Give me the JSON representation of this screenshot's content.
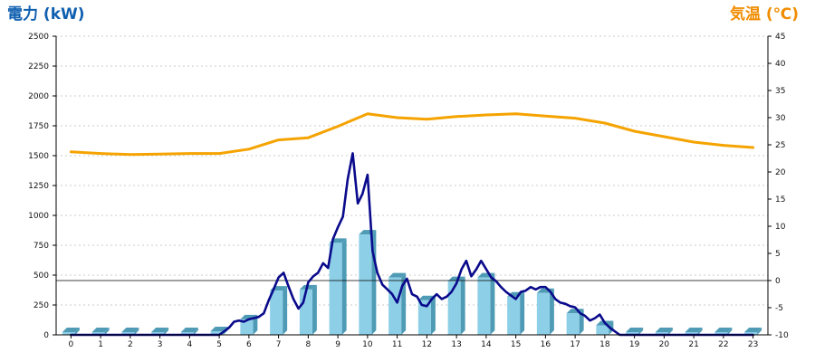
{
  "chart_data": {
    "type": "bar",
    "left_axis_title": "電力 (kW)",
    "right_axis_title": "気温 (℃)",
    "colors": {
      "left_title": "#1060b0",
      "right_title": "#f08c00",
      "bar_front": "#8ecfe8",
      "bar_side": "#4f9bb5",
      "bar_top": "#b8e3f3",
      "power_line": "#0a0a8c",
      "temp_line": "#f5a300",
      "grid": "#bbbbbb",
      "ref_line": "#000000"
    },
    "x_categories": [
      "0",
      "1",
      "2",
      "3",
      "4",
      "5",
      "6",
      "7",
      "8",
      "9",
      "10",
      "11",
      "12",
      "13",
      "14",
      "15",
      "16",
      "17",
      "18",
      "19",
      "20",
      "21",
      "22",
      "23"
    ],
    "y_left": {
      "min": 0,
      "max": 2500,
      "step": 250,
      "ticks": [
        "0",
        "250",
        "500",
        "750",
        "1000",
        "1250",
        "1500",
        "1750",
        "2000",
        "2250",
        "2500"
      ]
    },
    "y_right": {
      "min": -10,
      "max": 45,
      "step": 5,
      "ticks": [
        "-10",
        "-5",
        "0",
        "5",
        "10",
        "15",
        "20",
        "25",
        "30",
        "35",
        "40",
        "45"
      ]
    },
    "reference_line_right_value": 0,
    "series": [
      {
        "kind": "bar",
        "axis": "left",
        "values": [
          0,
          0,
          0,
          0,
          0,
          30,
          130,
          370,
          380,
          770,
          840,
          480,
          290,
          450,
          480,
          320,
          350,
          180,
          80,
          0,
          0,
          0,
          0,
          0
        ]
      },
      {
        "kind": "line",
        "axis": "left",
        "x": [
          0,
          0.5,
          1,
          1.5,
          2,
          2.5,
          3,
          3.5,
          4,
          4.5,
          5,
          5.17,
          5.33,
          5.5,
          5.67,
          5.83,
          6,
          6.17,
          6.33,
          6.5,
          6.67,
          6.83,
          7,
          7.17,
          7.33,
          7.5,
          7.67,
          7.83,
          8,
          8.17,
          8.33,
          8.5,
          8.67,
          8.83,
          9,
          9.17,
          9.33,
          9.5,
          9.67,
          9.83,
          10,
          10.17,
          10.33,
          10.5,
          10.67,
          10.83,
          11,
          11.17,
          11.33,
          11.5,
          11.67,
          11.83,
          12,
          12.17,
          12.33,
          12.5,
          12.67,
          12.83,
          13,
          13.17,
          13.33,
          13.5,
          13.67,
          13.83,
          14,
          14.17,
          14.33,
          14.5,
          14.67,
          14.83,
          15,
          15.17,
          15.33,
          15.5,
          15.67,
          15.83,
          16,
          16.17,
          16.33,
          16.5,
          16.67,
          16.83,
          17,
          17.17,
          17.33,
          17.5,
          17.67,
          17.83,
          18,
          18.17,
          18.5,
          19,
          20,
          21,
          22,
          23
        ],
        "values": [
          0,
          0,
          0,
          0,
          0,
          0,
          0,
          0,
          0,
          0,
          0,
          30,
          60,
          110,
          120,
          110,
          130,
          140,
          150,
          180,
          290,
          380,
          480,
          520,
          410,
          300,
          220,
          270,
          440,
          490,
          520,
          600,
          560,
          800,
          900,
          990,
          1300,
          1520,
          1100,
          1180,
          1340,
          700,
          520,
          420,
          380,
          340,
          270,
          410,
          470,
          340,
          320,
          250,
          240,
          300,
          340,
          300,
          320,
          360,
          430,
          550,
          620,
          490,
          550,
          620,
          550,
          480,
          450,
          400,
          360,
          330,
          300,
          360,
          370,
          400,
          380,
          400,
          400,
          360,
          300,
          270,
          260,
          240,
          230,
          180,
          160,
          120,
          140,
          170,
          100,
          60,
          0,
          0,
          0,
          0,
          0,
          0
        ]
      },
      {
        "kind": "line",
        "axis": "right",
        "x": [
          0,
          1,
          2,
          3,
          4,
          5,
          6,
          7,
          8,
          9,
          10,
          11,
          12,
          13,
          14,
          15,
          16,
          17,
          18,
          19,
          20,
          21,
          22,
          23
        ],
        "values": [
          23.7,
          23.4,
          23.2,
          23.3,
          23.4,
          23.4,
          24.2,
          25.9,
          26.3,
          28.4,
          30.7,
          30.0,
          29.7,
          30.2,
          30.5,
          30.7,
          30.3,
          29.9,
          29.0,
          27.5,
          26.5,
          25.5,
          24.9,
          24.5
        ]
      }
    ]
  }
}
